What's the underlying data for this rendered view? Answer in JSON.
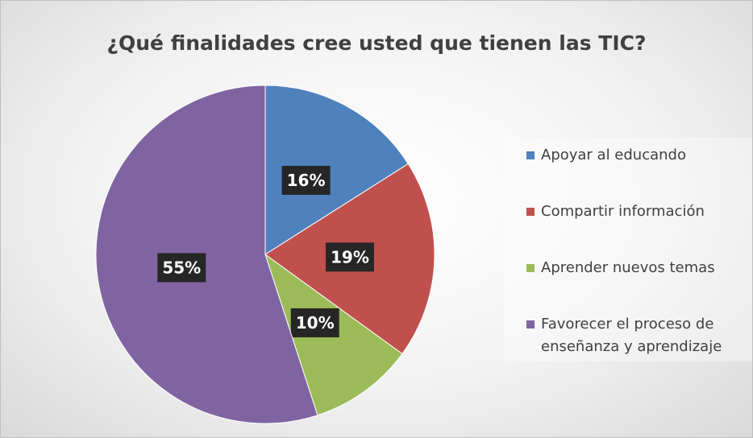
{
  "chart_data": {
    "type": "pie",
    "title": "¿Qué finalidades cree usted que tienen las TIC?",
    "categories": [
      "Apoyar al educando",
      "Compartir información",
      "Aprender nuevos temas",
      "Favorecer el proceso de enseñanza y aprendizaje"
    ],
    "values": [
      16,
      19,
      10,
      55
    ],
    "value_labels": [
      "16%",
      "19%",
      "10%",
      "55%"
    ],
    "colors": [
      "#4f81bd",
      "#c0504d",
      "#9bbb59",
      "#8064a2"
    ],
    "legend": "right"
  }
}
